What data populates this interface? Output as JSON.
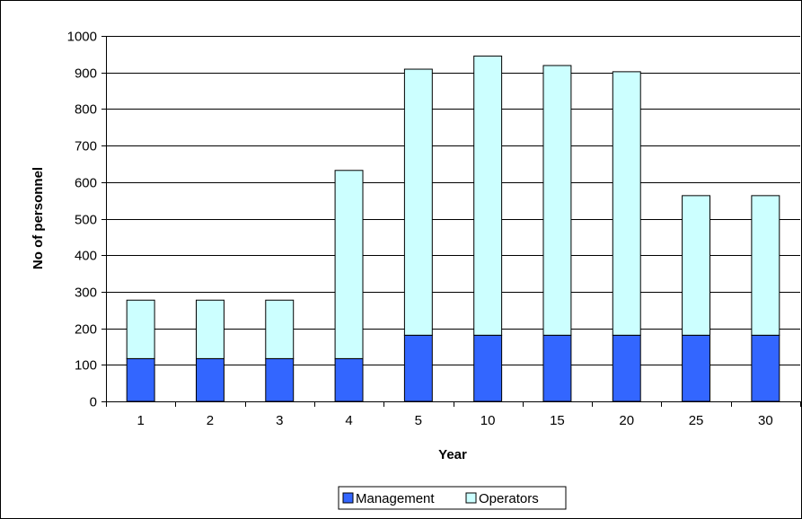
{
  "chart_data": {
    "type": "bar",
    "stacked": true,
    "title": "",
    "xlabel": "Year",
    "ylabel": "No of personnel",
    "categories": [
      "1",
      "2",
      "3",
      "4",
      "5",
      "10",
      "15",
      "20",
      "25",
      "30"
    ],
    "series": [
      {
        "name": "Management",
        "color": "#3366FF",
        "values": [
          117,
          117,
          117,
          117,
          181,
          181,
          181,
          181,
          181,
          181
        ]
      },
      {
        "name": "Operators",
        "color": "#CCFFFF",
        "values": [
          160,
          160,
          160,
          515,
          728,
          764,
          738,
          721,
          382,
          382
        ]
      }
    ],
    "ylim": [
      0,
      1000
    ],
    "yticks": [
      0,
      100,
      200,
      300,
      400,
      500,
      600,
      700,
      800,
      900,
      1000
    ],
    "grid": true,
    "legend": "bottom-center"
  }
}
